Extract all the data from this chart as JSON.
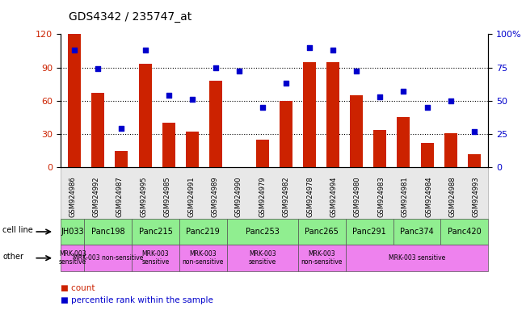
{
  "title": "GDS4342 / 235747_at",
  "samples": [
    "GSM924986",
    "GSM924992",
    "GSM924987",
    "GSM924995",
    "GSM924985",
    "GSM924991",
    "GSM924989",
    "GSM924990",
    "GSM924979",
    "GSM924982",
    "GSM924978",
    "GSM924994",
    "GSM924980",
    "GSM924983",
    "GSM924981",
    "GSM924984",
    "GSM924988",
    "GSM924993"
  ],
  "counts": [
    120,
    67,
    15,
    93,
    40,
    32,
    78,
    0,
    25,
    60,
    95,
    95,
    65,
    34,
    45,
    22,
    31,
    12
  ],
  "percentiles": [
    88,
    74,
    29,
    88,
    54,
    51,
    75,
    72,
    45,
    63,
    90,
    88,
    72,
    53,
    57,
    45,
    50,
    27
  ],
  "cell_line_spans": [
    {
      "label": "JH033",
      "start": 0,
      "end": 1
    },
    {
      "label": "Panc198",
      "start": 1,
      "end": 3
    },
    {
      "label": "Panc215",
      "start": 3,
      "end": 5
    },
    {
      "label": "Panc219",
      "start": 5,
      "end": 7
    },
    {
      "label": "Panc253",
      "start": 7,
      "end": 10
    },
    {
      "label": "Panc265",
      "start": 10,
      "end": 12
    },
    {
      "label": "Panc291",
      "start": 12,
      "end": 14
    },
    {
      "label": "Panc374",
      "start": 14,
      "end": 16
    },
    {
      "label": "Panc420",
      "start": 16,
      "end": 18
    }
  ],
  "other_spans": [
    {
      "label": "MRK-003\nsensitive",
      "start": 0,
      "end": 1
    },
    {
      "label": "MRK-003 non-sensitive",
      "start": 1,
      "end": 3
    },
    {
      "label": "MRK-003\nsensitive",
      "start": 3,
      "end": 5
    },
    {
      "label": "MRK-003\nnon-sensitive",
      "start": 5,
      "end": 7
    },
    {
      "label": "MRK-003\nsensitive",
      "start": 7,
      "end": 10
    },
    {
      "label": "MRK-003\nnon-sensitive",
      "start": 10,
      "end": 12
    },
    {
      "label": "MRK-003 sensitive",
      "start": 12,
      "end": 18
    }
  ],
  "bar_color": "#cc2200",
  "dot_color": "#0000cc",
  "bg_color": "#ffffff",
  "cell_line_color": "#90ee90",
  "other_color": "#ee82ee",
  "ylim_left": [
    0,
    120
  ],
  "ylim_right": [
    0,
    100
  ],
  "yticks_left": [
    0,
    30,
    60,
    90,
    120
  ],
  "yticks_right": [
    0,
    25,
    50,
    75,
    100
  ],
  "ytick_labels_right": [
    "0",
    "25",
    "50",
    "75",
    "100%"
  ],
  "grid_lines": [
    30,
    60,
    90
  ],
  "n_samples": 18
}
